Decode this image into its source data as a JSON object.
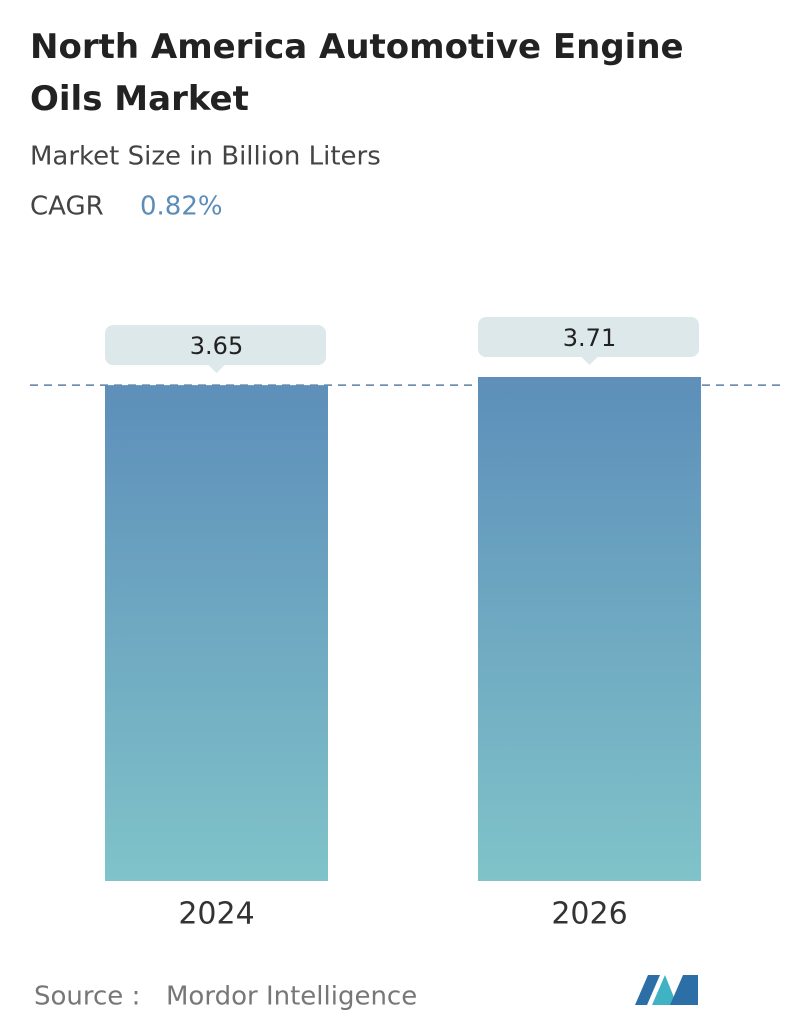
{
  "chart_data": {
    "type": "bar",
    "title": "North America Automotive Engine Oils Market",
    "subtitle": "Market Size in Billion Liters",
    "cagr_label": "CAGR",
    "cagr": "0.82%",
    "categories": [
      "2024",
      "2026"
    ],
    "values": [
      3.65,
      3.71
    ],
    "color": "#5b8db8",
    "source_label": "Source :",
    "source": "Mordor Intelligence"
  }
}
